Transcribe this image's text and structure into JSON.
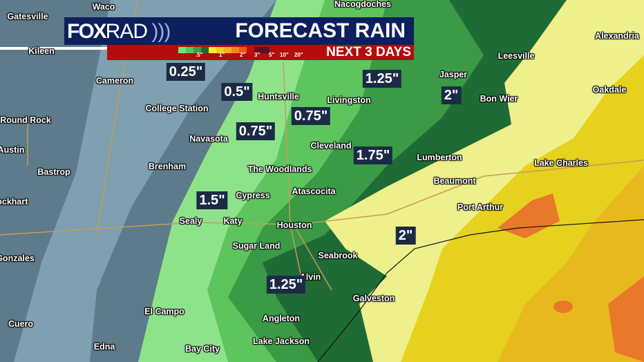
{
  "header": {
    "logo_bold": "FOX",
    "logo_light": "RAD",
    "title": "FORECAST RAIN",
    "subtitle": "NEXT 3 DAYS"
  },
  "legend": {
    "ticks": [
      ".5\"",
      "1\"",
      "2\"",
      "3\"",
      "5\"",
      "10\"",
      "20\""
    ],
    "colors": [
      "#7be07b",
      "#5cc45c",
      "#3d9e45",
      "#1f6b2a",
      "#f5f02a",
      "#f0d020",
      "#f0b020",
      "#f08a20",
      "#e85a15",
      "#c21010",
      "#6b0f1a",
      "#5a1030"
    ]
  },
  "map_colors": {
    "far_west": "#5d7b8a",
    "west": "#7ea0b0",
    "light_green": "#8ee38a",
    "green": "#5ec45e",
    "mid_green": "#3a9a45",
    "dark_green": "#1f6b35",
    "light_yellow": "#eef08c",
    "yellow": "#e6d21e",
    "gold": "#e8b91e",
    "orange": "#e8782a"
  },
  "cities": [
    "Waco",
    "Gatesville",
    "Nacogdoches",
    "Alexandria",
    "Kileen",
    "Leesville",
    "Cameron",
    "Jasper",
    "Oakdale",
    "Huntsville",
    "Livingston",
    "Bon Wier",
    "College Station",
    "Round Rock",
    "Navasota",
    "Cleveland",
    "Lumberton",
    "Austin",
    "Brenham",
    "The Woodlands",
    "Lake Charles",
    "Bastrop",
    "Beaumont",
    "Cypress",
    "Atascocita",
    "Lockhart",
    "Port Arthur",
    "Sealy",
    "Katy",
    "Houston",
    "Sugar Land",
    "Seabrook",
    "Gonzales",
    "Alvin",
    "Galveston",
    "El Campo",
    "Angleton",
    "Cuero",
    "Lake Jackson",
    "Edna",
    "Bay City"
  ],
  "amounts": [
    "0.25\"",
    "0.5\"",
    "0.75\"",
    "0.75\"",
    "1.25\"",
    "2\"",
    "1.75\"",
    "1.5\"",
    "2\"",
    "1.25\""
  ]
}
